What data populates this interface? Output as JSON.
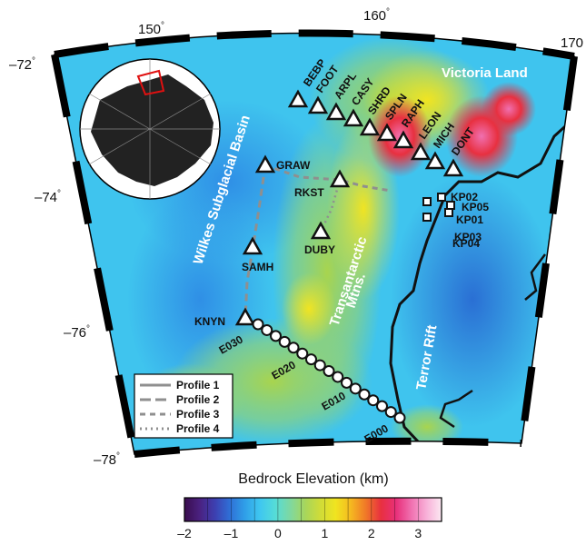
{
  "lon_labels": [
    {
      "text": "150",
      "deg": "°"
    },
    {
      "text": "160",
      "deg": "°"
    },
    {
      "text": "170",
      "deg": ""
    }
  ],
  "lat_labels": [
    {
      "text": "–72",
      "deg": "°"
    },
    {
      "text": "–74",
      "deg": "°"
    },
    {
      "text": "–76",
      "deg": "°"
    },
    {
      "text": "–78",
      "deg": "°"
    }
  ],
  "regions": {
    "victoria_land": "Victoria Land",
    "wilkes_basin": "Wilkes Subglacial Basin",
    "transantarctic_1": "Transantarctic",
    "transantarctic_2": "Mtns.",
    "terror_rift": "Terror Rift"
  },
  "stations": [
    {
      "id": "BEBP",
      "label": "BEBP"
    },
    {
      "id": "FOOT",
      "label": "FOOT"
    },
    {
      "id": "ARPL",
      "label": "ARPL"
    },
    {
      "id": "CASY",
      "label": "CASY"
    },
    {
      "id": "SHRD",
      "label": "SHRD"
    },
    {
      "id": "SPLN",
      "label": "SPLN"
    },
    {
      "id": "RAPH",
      "label": "RAPH"
    },
    {
      "id": "LEON",
      "label": "LEON"
    },
    {
      "id": "MICH",
      "label": "MICH"
    },
    {
      "id": "DONT",
      "label": "DONT"
    },
    {
      "id": "GRAW",
      "label": "GRAW"
    },
    {
      "id": "RKST",
      "label": "RKST"
    },
    {
      "id": "DUBY",
      "label": "DUBY"
    },
    {
      "id": "SAMH",
      "label": "SAMH"
    },
    {
      "id": "KNYN",
      "label": "KNYN"
    }
  ],
  "kp_stations": [
    {
      "id": "KP02",
      "label": "KP02"
    },
    {
      "id": "KP05",
      "label": "KP05"
    },
    {
      "id": "KP01",
      "label": "KP01"
    },
    {
      "id": "KP03",
      "label": "KP03"
    },
    {
      "id": "KP04",
      "label": "KP04"
    }
  ],
  "e_labels": [
    "E030",
    "E020",
    "E010",
    "E000"
  ],
  "legend": [
    {
      "label": "Profile 1",
      "style": "solid"
    },
    {
      "label": "Profile 2",
      "style": "long-dash"
    },
    {
      "label": "Profile 3",
      "style": "dash"
    },
    {
      "label": "Profile 4",
      "style": "dot"
    }
  ],
  "colorbar": {
    "title": "Bedrock Elevation (km)",
    "ticks": [
      "–2",
      "–1",
      "0",
      "1",
      "2",
      "3"
    ],
    "colors": [
      "#3a0d4d",
      "#4a2180",
      "#3d3fb0",
      "#2f6fd6",
      "#2f9fe8",
      "#3fc7f0",
      "#55dcd8",
      "#7fd8a0",
      "#a8d65a",
      "#d0dc38",
      "#f0e420",
      "#f5b820",
      "#f07828",
      "#e83040",
      "#e8307a",
      "#f070b0",
      "#f8b0d8",
      "#fce8f2"
    ]
  },
  "colors": {
    "frame_black": "#000000",
    "station_fill": "#ffffff",
    "coast": "#111111",
    "profile": "#8f8f8f",
    "inset_red": "#e01010"
  }
}
